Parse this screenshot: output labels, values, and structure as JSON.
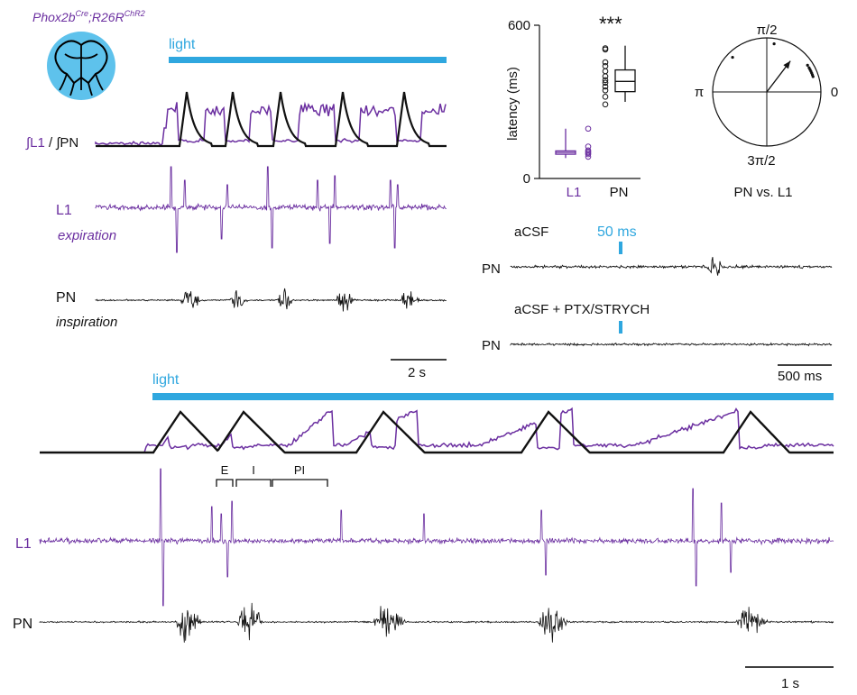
{
  "colors": {
    "light": "#2fa7df",
    "expiration": "#6b2fa0",
    "inspiration": "#111111",
    "brain_fill": "#5ec2ec"
  },
  "top_left": {
    "genotype_parts": [
      "Phox2b",
      "Cre",
      ";R26R",
      "ChR2"
    ],
    "light_label": "light",
    "integrated_label_l1": "∫L1",
    "integrated_sep": " / ",
    "integrated_label_pn": "∫PN",
    "l1_label": "L1",
    "l1_sublabel": "expiration",
    "pn_label": "PN",
    "pn_sublabel": "inspiration",
    "scale_bar": "2 s"
  },
  "latency_panel": {
    "significance": "***",
    "scale_bar": "500 ms",
    "stim_label": "50 ms",
    "trace_labels": [
      "PN",
      "PN"
    ],
    "condition_1": "aCSF",
    "condition_2": "aCSF + PTX/STRYCH"
  },
  "polar_panel": {
    "labels": [
      "π/2",
      "π",
      "0",
      "3π/2"
    ],
    "caption": "PN vs. L1"
  },
  "bottom": {
    "light_label": "light",
    "l1_label": "L1",
    "pn_label": "PN",
    "phase_labels": [
      "E",
      "I",
      "PI"
    ],
    "scale_bar": "1 s"
  },
  "chart_data": [
    {
      "type": "box",
      "ylabel": "latency (ms)",
      "ylim": [
        0,
        600
      ],
      "yticks": [
        0,
        600
      ],
      "categories": [
        "L1",
        "PN"
      ],
      "boxes": [
        {
          "name": "L1",
          "min": 80,
          "q1": 95,
          "median": 102,
          "q3": 108,
          "max": 195
        },
        {
          "name": "PN",
          "min": 300,
          "q1": 340,
          "median": 380,
          "q3": 425,
          "max": 520
        }
      ],
      "points": {
        "L1": [
          85,
          95,
          100,
          105,
          110,
          125,
          195
        ],
        "PN": [
          290,
          320,
          345,
          360,
          375,
          385,
          400,
          420,
          440,
          455,
          505,
          510
        ]
      },
      "significance": "***"
    },
    {
      "type": "polar",
      "caption": "PN vs. L1",
      "mean_vector": {
        "angle_rad": 0.92,
        "length": 0.72
      },
      "points_angle_rad": [
        0.32,
        0.36,
        0.4,
        0.44,
        0.48,
        0.52,
        0.58,
        1.42,
        2.35
      ]
    }
  ]
}
